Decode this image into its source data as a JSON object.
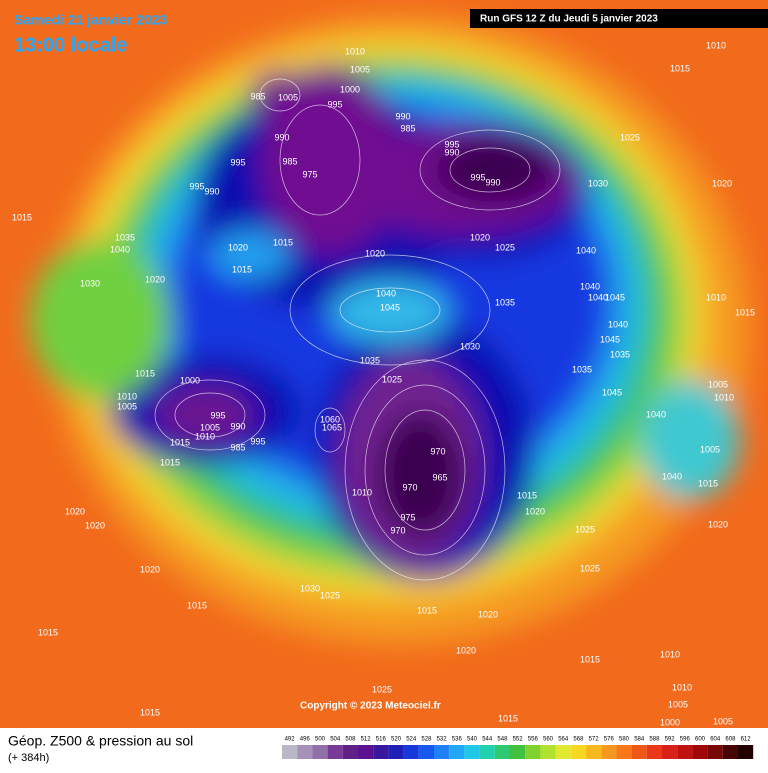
{
  "header": {
    "date": "Samedi 21 janvier 2023",
    "time": "13:00 locale",
    "run": "Run GFS 12 Z du Jeudi 5 janvier 2023"
  },
  "copyright": "Copyright © 2023 Meteociel.fr",
  "legend": {
    "title": "Géop. Z500 & pression au sol",
    "lead": "(+ 384h)",
    "scale": [
      492,
      496,
      500,
      504,
      508,
      512,
      516,
      520,
      524,
      528,
      532,
      536,
      540,
      544,
      548,
      552,
      556,
      560,
      564,
      568,
      572,
      576,
      580,
      584,
      588,
      592,
      596,
      600,
      604,
      608,
      612
    ],
    "colors": [
      "#b8b8c8",
      "#a890b8",
      "#9070a8",
      "#783a98",
      "#602088",
      "#5a1090",
      "#3818a0",
      "#2020b8",
      "#1838d8",
      "#1858f0",
      "#2080f8",
      "#20a8f8",
      "#20c8e8",
      "#20d0b0",
      "#30c870",
      "#40c040",
      "#80d030",
      "#b0e030",
      "#e0e830",
      "#f8d820",
      "#f8b820",
      "#f89820",
      "#f87818",
      "#f05818",
      "#e83818",
      "#d82018",
      "#c01010",
      "#a00808",
      "#780808",
      "#480404",
      "#200000"
    ]
  },
  "pressure_labels": [
    "1010",
    "1005",
    "1000",
    "995",
    "985",
    "1005",
    "990",
    "985",
    "975",
    "995",
    "995",
    "990",
    "1015",
    "1035",
    "1040",
    "1020",
    "1015",
    "1020",
    "1015",
    "1020",
    "1030",
    "990",
    "985",
    "995",
    "990",
    "995",
    "990",
    "1020",
    "1025",
    "1030",
    "1025",
    "1010",
    "1015",
    "1020",
    "1040",
    "1040",
    "1040",
    "1045",
    "1035",
    "1040",
    "1045",
    "1010",
    "1015",
    "1040",
    "1045",
    "1035",
    "1030",
    "1035",
    "1035",
    "1025",
    "1015",
    "1000",
    "1010",
    "1005",
    "995",
    "1005",
    "990",
    "1015",
    "1010",
    "985",
    "995",
    "1060",
    "1065",
    "1045",
    "1040",
    "1005",
    "1010",
    "1005",
    "1015",
    "970",
    "965",
    "970",
    "1010",
    "1015",
    "975",
    "970",
    "1020",
    "1020",
    "1020",
    "1040",
    "1015",
    "1025",
    "1020",
    "1025",
    "1020",
    "1030",
    "1025",
    "1015",
    "1015",
    "1020",
    "1015",
    "1020",
    "1015",
    "1010",
    "1010",
    "1025",
    "1005",
    "1015",
    "1015",
    "1000",
    "1005"
  ]
}
